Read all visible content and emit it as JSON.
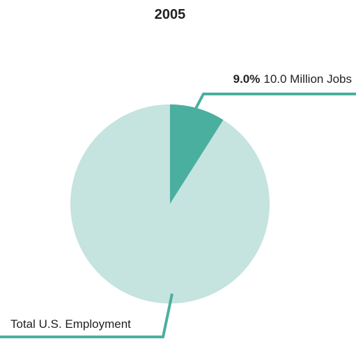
{
  "chart_data": {
    "type": "pie",
    "title": "2005",
    "slices": [
      {
        "label": "10.0 Million Jobs",
        "percent_label": "9.0%",
        "value": 9.0,
        "color": "#4baf9f"
      },
      {
        "label": "Total U.S. Employment",
        "value": 91.0,
        "color": "#c5e3df"
      }
    ],
    "start_angle_deg": 0,
    "direction": "clockwise",
    "leader_line_color": "#4baf9f"
  }
}
